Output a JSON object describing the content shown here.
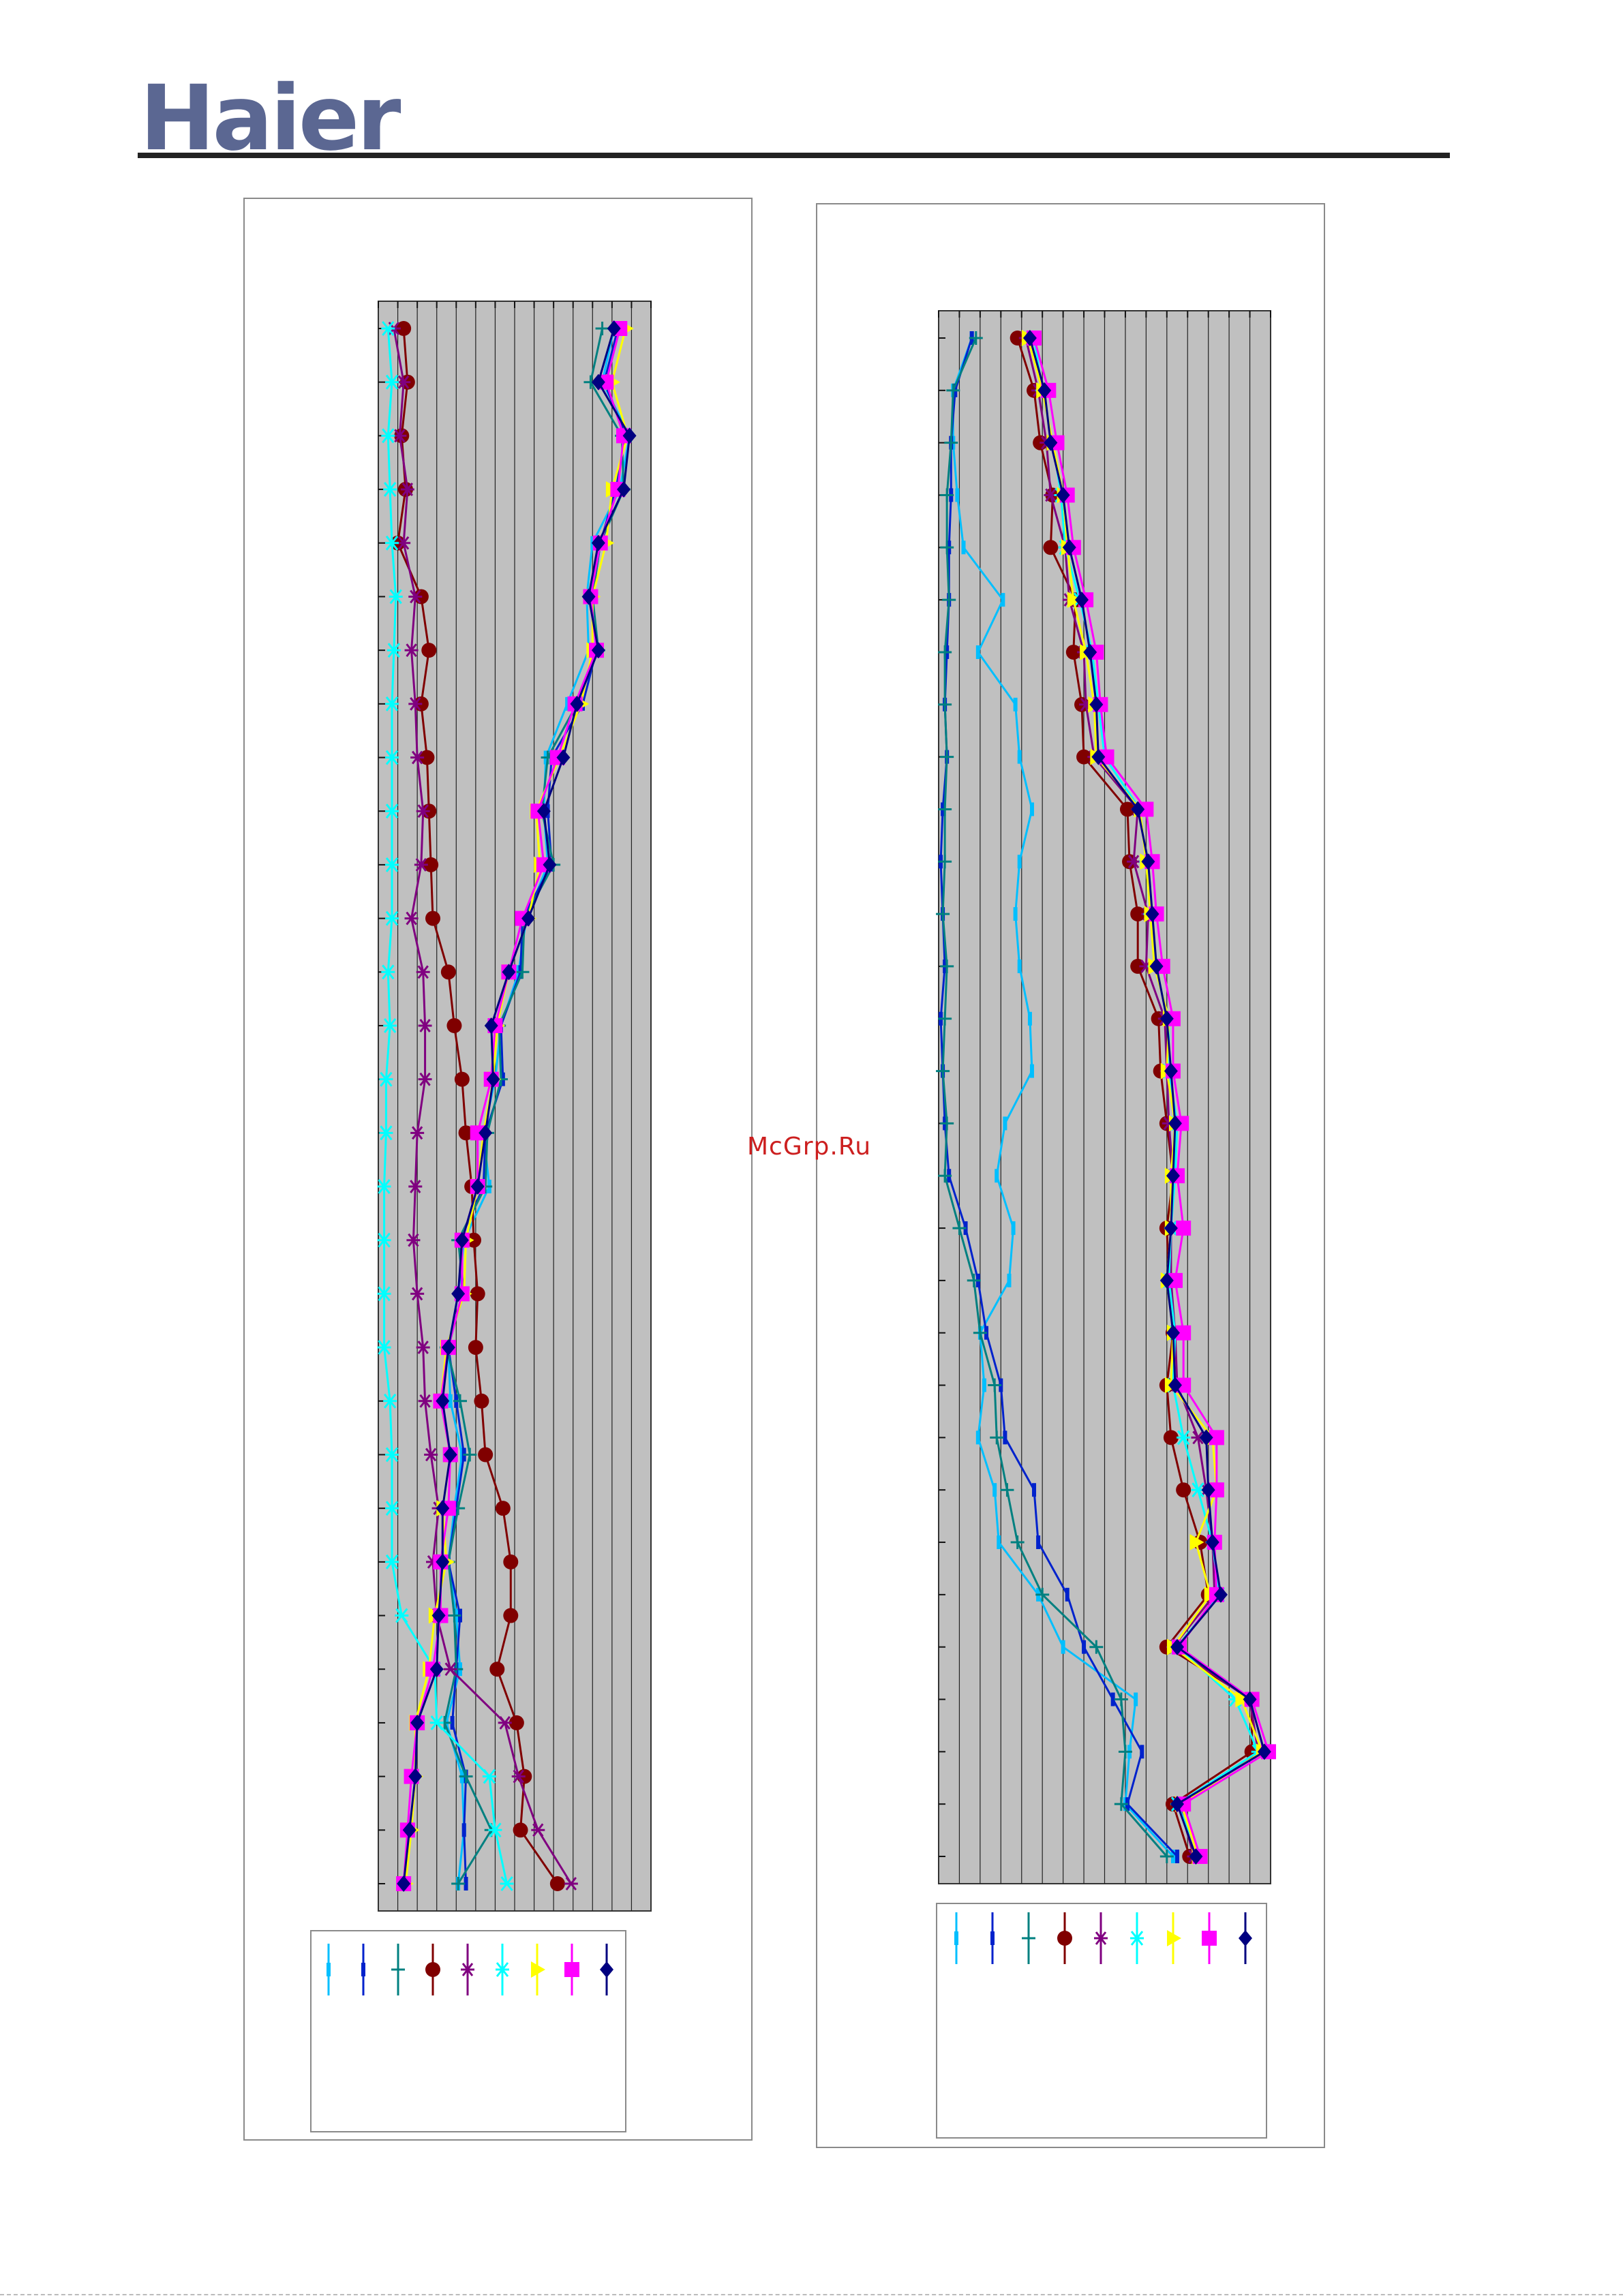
{
  "brand": {
    "logo_text": "Haier",
    "header_rule_color": "#222222"
  },
  "watermark": "McGrp.Ru",
  "chart_data": [
    {
      "type": "line",
      "orientation": "vertical",
      "title": "",
      "xlabel": "",
      "ylabel": "",
      "xlim": [
        0,
        14
      ],
      "ylim": [
        0,
        29
      ],
      "grid": true,
      "background": "#c0c0c0",
      "y": [
        0,
        1,
        2,
        3,
        4,
        5,
        6,
        7,
        8,
        9,
        10,
        11,
        12,
        13,
        14,
        15,
        16,
        17,
        18,
        19,
        20,
        21,
        22,
        23,
        24,
        25,
        26,
        27,
        28,
        29
      ],
      "series": [
        {
          "marker": "bar",
          "color": "#00bfff",
          "values": [
            12.1,
            11.5,
            12.9,
            12.4,
            11.0,
            10.7,
            10.8,
            9.7,
            8.6,
            8.5,
            8.7,
            7.6,
            7.2,
            6.3,
            6.0,
            5.4,
            5.7,
            4.4,
            4.1,
            3.6,
            3.7,
            4.3,
            3.9,
            3.6,
            4.0,
            4.2,
            3.5,
            4.3,
            4.4,
            4.1
          ]
        },
        {
          "marker": "bar",
          "color": "#0022cc",
          "values": [
            12.3,
            11.6,
            12.7,
            12.2,
            11.4,
            11.0,
            11.2,
            10.5,
            8.9,
            8.7,
            8.9,
            7.4,
            7.3,
            6.3,
            6.4,
            5.5,
            5.4,
            4.2,
            4.3,
            3.6,
            4.0,
            4.4,
            4.0,
            3.6,
            4.2,
            4.0,
            3.8,
            4.5,
            4.4,
            4.5
          ]
        },
        {
          "marker": "plus",
          "color": "#008080",
          "values": [
            11.5,
            10.9,
            12.5,
            12.6,
            11.4,
            11.0,
            11.3,
            10.2,
            8.7,
            8.4,
            9.0,
            7.5,
            7.4,
            6.2,
            6.3,
            5.6,
            5.5,
            4.1,
            4.4,
            3.5,
            4.2,
            4.7,
            4.1,
            3.6,
            3.9,
            4.0,
            3.4,
            4.5,
            5.8,
            4.1
          ]
        },
        {
          "marker": "circle",
          "color": "#800000",
          "values": [
            1.3,
            1.5,
            1.2,
            1.4,
            1.0,
            2.2,
            2.6,
            2.2,
            2.5,
            2.6,
            2.7,
            2.8,
            3.6,
            3.9,
            4.3,
            4.5,
            4.8,
            4.9,
            5.1,
            5.0,
            5.3,
            5.5,
            6.4,
            6.8,
            6.8,
            6.1,
            7.1,
            7.5,
            7.3,
            9.2
          ]
        },
        {
          "marker": "asterisk",
          "color": "#800080",
          "values": [
            0.8,
            1.3,
            1.1,
            1.5,
            1.3,
            1.9,
            1.7,
            1.9,
            2.0,
            2.3,
            2.2,
            1.7,
            2.3,
            2.4,
            2.4,
            2.0,
            1.9,
            1.8,
            2.0,
            2.3,
            2.4,
            2.7,
            3.1,
            2.8,
            3.0,
            3.7,
            6.5,
            7.2,
            8.2,
            9.9
          ]
        },
        {
          "marker": "x",
          "color": "#00ffff",
          "values": [
            0.5,
            0.7,
            0.5,
            0.6,
            0.7,
            0.9,
            0.8,
            0.7,
            0.7,
            0.7,
            0.7,
            0.7,
            0.5,
            0.6,
            0.4,
            0.4,
            0.3,
            0.3,
            0.3,
            0.3,
            0.6,
            0.7,
            0.7,
            0.7,
            1.2,
            2.9,
            3.0,
            5.7,
            6.0,
            6.6
          ]
        },
        {
          "marker": "triangle",
          "color": "#ffff00",
          "values": [
            12.7,
            12.0,
            12.8,
            12.0,
            11.7,
            11.0,
            11.0,
            10.4,
            9.3,
            8.1,
            8.3,
            7.7,
            6.7,
            6.1,
            5.9,
            5.4,
            5.1,
            4.5,
            4.4,
            3.5,
            3.2,
            3.7,
            3.3,
            3.5,
            2.9,
            2.6,
            1.9,
            1.9,
            1.7,
            1.4
          ]
        },
        {
          "marker": "square",
          "color": "#ff00ff",
          "values": [
            12.4,
            11.7,
            12.6,
            12.3,
            11.4,
            10.9,
            11.2,
            10.1,
            9.2,
            8.2,
            8.5,
            7.4,
            6.7,
            6.0,
            5.8,
            5.1,
            5.1,
            4.3,
            4.3,
            3.6,
            3.2,
            3.7,
            3.6,
            3.2,
            3.2,
            2.8,
            2.0,
            1.7,
            1.5,
            1.3
          ]
        },
        {
          "marker": "diamond",
          "color": "#000080",
          "values": [
            12.1,
            11.3,
            12.9,
            12.6,
            11.3,
            10.8,
            11.3,
            10.2,
            9.5,
            8.5,
            8.8,
            7.7,
            6.7,
            5.8,
            5.9,
            5.5,
            5.1,
            4.3,
            4.1,
            3.6,
            3.3,
            3.7,
            3.3,
            3.3,
            3.1,
            3.0,
            2.0,
            1.9,
            1.6,
            1.3
          ]
        }
      ]
    },
    {
      "type": "line",
      "orientation": "vertical",
      "title": "",
      "xlabel": "",
      "ylabel": "",
      "xlim": [
        0,
        16
      ],
      "ylim": [
        0,
        29
      ],
      "grid": true,
      "background": "#c0c0c0",
      "y": [
        0,
        1,
        2,
        3,
        4,
        5,
        6,
        7,
        8,
        9,
        10,
        11,
        12,
        13,
        14,
        15,
        16,
        17,
        18,
        19,
        20,
        21,
        22,
        23,
        24,
        25,
        26,
        27,
        28,
        29
      ],
      "series": [
        {
          "marker": "bar",
          "color": "#00bfff",
          "values": [
            1.6,
            0.7,
            0.7,
            0.9,
            1.2,
            3.1,
            1.9,
            3.7,
            3.9,
            4.5,
            3.9,
            3.7,
            3.9,
            4.4,
            4.5,
            3.2,
            2.8,
            3.6,
            3.4,
            2.0,
            2.2,
            1.9,
            2.7,
            2.9,
            4.8,
            6.0,
            9.5,
            9.2,
            9.0,
            11.3
          ]
        },
        {
          "marker": "bar",
          "color": "#0022cc",
          "values": [
            1.6,
            0.8,
            0.6,
            0.6,
            0.5,
            0.5,
            0.4,
            0.3,
            0.4,
            0.2,
            0.1,
            0.2,
            0.3,
            0.1,
            0.2,
            0.3,
            0.5,
            1.3,
            1.9,
            2.3,
            3.0,
            3.2,
            4.6,
            4.8,
            6.2,
            7.0,
            8.4,
            9.8,
            9.1,
            11.5
          ]
        },
        {
          "marker": "plus",
          "color": "#008080",
          "values": [
            1.8,
            0.7,
            0.6,
            0.4,
            0.4,
            0.5,
            0.3,
            0.3,
            0.4,
            0.3,
            0.3,
            0.2,
            0.4,
            0.3,
            0.2,
            0.4,
            0.3,
            1.0,
            1.7,
            2.0,
            2.7,
            2.8,
            3.3,
            3.8,
            5.0,
            7.6,
            8.8,
            9.0,
            8.8,
            11.0
          ]
        },
        {
          "marker": "circle",
          "color": "#800000",
          "values": [
            3.8,
            4.6,
            4.9,
            5.5,
            5.4,
            6.6,
            6.5,
            6.9,
            7.0,
            9.1,
            9.2,
            9.6,
            9.6,
            10.6,
            10.7,
            11.0,
            11.3,
            11.0,
            11.1,
            11.3,
            11.0,
            11.2,
            11.8,
            12.6,
            13.0,
            11.0,
            15.1,
            15.1,
            11.3,
            12.1
          ]
        },
        {
          "marker": "asterisk",
          "color": "#800080",
          "values": [
            4.2,
            4.8,
            5.2,
            5.4,
            6.1,
            6.3,
            7.0,
            7.1,
            7.5,
            9.6,
            9.4,
            10.1,
            10.0,
            10.9,
            11.0,
            11.1,
            11.3,
            11.2,
            11.2,
            11.4,
            11.5,
            12.5,
            12.9,
            13.2,
            13.3,
            11.3,
            15.0,
            15.4,
            11.6,
            12.3
          ]
        },
        {
          "marker": "x",
          "color": "#00ffff",
          "values": [
            4.6,
            5.0,
            5.5,
            5.9,
            6.1,
            6.8,
            7.4,
            7.7,
            8.0,
            9.7,
            10.0,
            10.2,
            10.4,
            11.1,
            11.1,
            11.5,
            11.4,
            11.2,
            11.1,
            11.4,
            11.3,
            11.8,
            12.5,
            13.2,
            13.5,
            11.5,
            14.3,
            15.4,
            11.5,
            12.6
          ]
        },
        {
          "marker": "triangle",
          "color": "#ffff00",
          "values": [
            4.3,
            5.0,
            5.5,
            6.0,
            6.2,
            6.5,
            7.1,
            7.5,
            7.6,
            9.7,
            10.0,
            10.2,
            10.4,
            11.1,
            11.0,
            11.4,
            11.2,
            11.2,
            11.0,
            11.3,
            11.2,
            13.2,
            13.4,
            12.4,
            13.1,
            11.3,
            14.6,
            15.6,
            11.7,
            12.5
          ]
        },
        {
          "marker": "square",
          "color": "#ff00ff",
          "values": [
            4.6,
            5.3,
            5.7,
            6.2,
            6.5,
            7.1,
            7.6,
            7.8,
            8.1,
            10.0,
            10.3,
            10.5,
            10.8,
            11.3,
            11.3,
            11.7,
            11.5,
            11.8,
            11.4,
            11.8,
            11.8,
            13.4,
            13.4,
            13.3,
            13.4,
            11.6,
            15.1,
            15.9,
            11.8,
            12.6
          ]
        },
        {
          "marker": "diamond",
          "color": "#000080",
          "values": [
            4.4,
            5.1,
            5.4,
            6.0,
            6.3,
            6.9,
            7.3,
            7.6,
            7.7,
            9.6,
            10.1,
            10.3,
            10.5,
            11.0,
            11.2,
            11.4,
            11.3,
            11.2,
            11.0,
            11.3,
            11.4,
            12.9,
            13.0,
            13.2,
            13.6,
            11.5,
            15.0,
            15.7,
            11.5,
            12.4
          ]
        }
      ]
    }
  ]
}
